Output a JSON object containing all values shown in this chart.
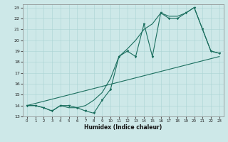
{
  "xlabel": "Humidex (Indice chaleur)",
  "xlim": [
    -0.5,
    23.5
  ],
  "ylim": [
    13,
    23.3
  ],
  "yticks": [
    13,
    14,
    15,
    16,
    17,
    18,
    19,
    20,
    21,
    22,
    23
  ],
  "xticks": [
    0,
    1,
    2,
    3,
    4,
    5,
    6,
    7,
    8,
    9,
    10,
    11,
    12,
    13,
    14,
    15,
    16,
    17,
    18,
    19,
    20,
    21,
    22,
    23
  ],
  "background_color": "#cde8e8",
  "line_color": "#1a6e5e",
  "line1_x": [
    0,
    1,
    2,
    3,
    4,
    5,
    6,
    7,
    8,
    9,
    10,
    11,
    12,
    13,
    14,
    15,
    16,
    17,
    18,
    19,
    20,
    21,
    22,
    23
  ],
  "line1_y": [
    14.0,
    14.0,
    13.8,
    13.5,
    14.0,
    14.0,
    13.8,
    13.5,
    13.3,
    14.5,
    15.5,
    18.5,
    19.0,
    18.5,
    21.5,
    18.5,
    22.5,
    22.0,
    22.0,
    22.5,
    23.0,
    21.0,
    19.0,
    18.8
  ],
  "line2_x": [
    0,
    1,
    2,
    3,
    4,
    5,
    6,
    7,
    8,
    9,
    10,
    11,
    12,
    13,
    14,
    15,
    16,
    17,
    18,
    19,
    20,
    21,
    22,
    23
  ],
  "line2_y": [
    14.0,
    14.0,
    13.8,
    13.5,
    14.0,
    13.8,
    13.8,
    14.0,
    14.5,
    15.2,
    16.5,
    18.5,
    19.2,
    20.0,
    21.0,
    21.5,
    22.5,
    22.2,
    22.2,
    22.5,
    23.0,
    21.0,
    19.0,
    18.8
  ],
  "line3_x": [
    0,
    23
  ],
  "line3_y": [
    14.0,
    18.5
  ]
}
